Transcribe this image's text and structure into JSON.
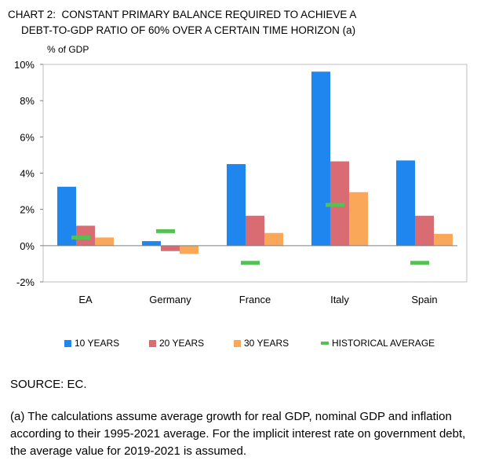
{
  "title_line1": "CHART 2:  CONSTANT PRIMARY BALANCE REQUIRED TO ACHIEVE A",
  "title_line2": "DEBT-TO-GDP RATIO OF 60% OVER A CERTAIN TIME HORIZON (a)",
  "source": "SOURCE: EC.",
  "note": "(a) The calculations assume average growth for real GDP, nominal GDP and inflation according to their 1995-2021 average. For the implicit interest rate on government debt, the average value for 2019-2021 is assumed.",
  "chart_data": {
    "type": "bar",
    "ylabel": "% of GDP",
    "ylim": [
      -2,
      10
    ],
    "yticks": [
      "-2%",
      "0%",
      "2%",
      "4%",
      "6%",
      "8%",
      "10%"
    ],
    "ytick_values": [
      -2,
      0,
      2,
      4,
      6,
      8,
      10
    ],
    "categories": [
      "EA",
      "Germany",
      "France",
      "Italy",
      "Spain"
    ],
    "series": [
      {
        "name": "10 YEARS",
        "color": "#1f86f0",
        "values": [
          3.25,
          0.25,
          4.5,
          9.6,
          4.7
        ]
      },
      {
        "name": "20 YEARS",
        "color": "#d96b73",
        "values": [
          1.1,
          -0.3,
          1.65,
          4.65,
          1.65
        ]
      },
      {
        "name": "30 YEARS",
        "color": "#fba75a",
        "values": [
          0.45,
          -0.45,
          0.7,
          2.95,
          0.65
        ]
      }
    ],
    "markers": {
      "name": "HISTORICAL AVERAGE",
      "color": "#55c155",
      "values": [
        0.45,
        0.8,
        -0.95,
        2.25,
        -0.95
      ]
    },
    "legend_position": "bottom"
  }
}
